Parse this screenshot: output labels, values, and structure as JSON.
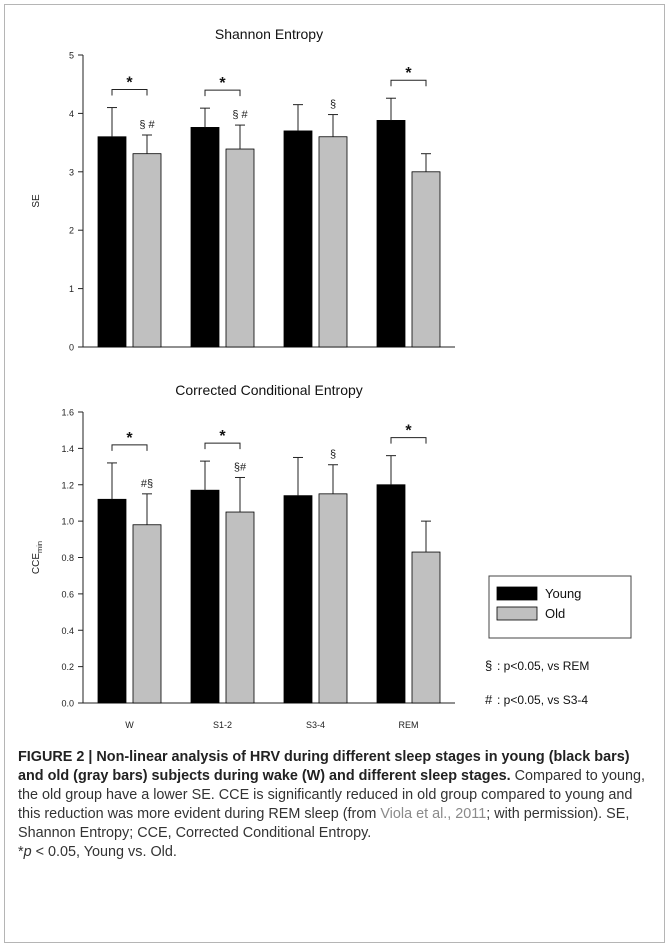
{
  "chart_data": [
    {
      "type": "bar",
      "title": "Shannon Entropy",
      "ylabel": "SE",
      "xlabel": "",
      "categories": [
        "W",
        "S1-2",
        "S3-4",
        "REM"
      ],
      "ylim": [
        0,
        5
      ],
      "yticks": [
        "0",
        "1",
        "2",
        "3",
        "4",
        "5"
      ],
      "show_category_labels": false,
      "grid": false,
      "series": [
        {
          "name": "Young",
          "color": "#000000",
          "values": [
            3.6,
            3.76,
            3.7,
            3.88
          ],
          "errors": [
            0.5,
            0.33,
            0.45,
            0.38
          ]
        },
        {
          "name": "Old",
          "color": "#c0c0c0",
          "values": [
            3.31,
            3.39,
            3.6,
            3.0
          ],
          "errors": [
            0.32,
            0.41,
            0.38,
            0.31
          ]
        }
      ],
      "significance": [
        {
          "category": 0,
          "label": "*"
        },
        {
          "category": 1,
          "label": "*"
        },
        {
          "category": 3,
          "label": "*"
        }
      ],
      "annotations": [
        {
          "category": 0,
          "text": "§ #"
        },
        {
          "category": 1,
          "text": "§ #"
        },
        {
          "category": 2,
          "text": "§"
        }
      ]
    },
    {
      "type": "bar",
      "title": "Corrected Conditional Entropy",
      "ylabel": "CCE",
      "ylabel_subscript": "min",
      "xlabel": "",
      "categories": [
        "W",
        "S1-2",
        "S3-4",
        "REM"
      ],
      "ylim": [
        0,
        1.6
      ],
      "yticks": [
        "0.0",
        "0.2",
        "0.4",
        "0.6",
        "0.8",
        "1.0",
        "1.2",
        "1.4",
        "1.6"
      ],
      "show_category_labels": true,
      "grid": false,
      "series": [
        {
          "name": "Young",
          "color": "#000000",
          "values": [
            1.12,
            1.17,
            1.14,
            1.2
          ],
          "errors": [
            0.2,
            0.16,
            0.21,
            0.16
          ]
        },
        {
          "name": "Old",
          "color": "#c0c0c0",
          "values": [
            0.98,
            1.05,
            1.15,
            0.83
          ],
          "errors": [
            0.17,
            0.19,
            0.16,
            0.17
          ]
        }
      ],
      "significance": [
        {
          "category": 0,
          "label": "*"
        },
        {
          "category": 1,
          "label": "*"
        },
        {
          "category": 3,
          "label": "*"
        }
      ],
      "annotations": [
        {
          "category": 0,
          "text": "#§"
        },
        {
          "category": 1,
          "text": "§#"
        },
        {
          "category": 2,
          "text": "§"
        }
      ]
    }
  ],
  "legend": {
    "position": "right",
    "items": [
      {
        "label": "Young",
        "color": "#000000"
      },
      {
        "label": "Old",
        "color": "#c0c0c0"
      }
    ]
  },
  "notes": [
    {
      "symbol": "§",
      "text": ": p<0.05, vs REM"
    },
    {
      "symbol": "#",
      "text": ": p<0.05, vs S3-4"
    }
  ],
  "caption": {
    "lead": "FIGURE 2 | Non-linear analysis of HRV during different sleep stages in young (black bars) and old (gray bars) subjects during wake (W) and different sleep stages.",
    "body1": " Compared to young, the old group have a lower SE. CCE is significantly reduced in old group compared to young and this reduction was more evident during REM sleep (from ",
    "cite": "Viola et al., 2011",
    "body2": "; with permission). SE, Shannon Entropy; CCE, Corrected Conditional Entropy.",
    "star": "*",
    "p": "p",
    "tail": " < 0.05, Young vs. Old."
  }
}
